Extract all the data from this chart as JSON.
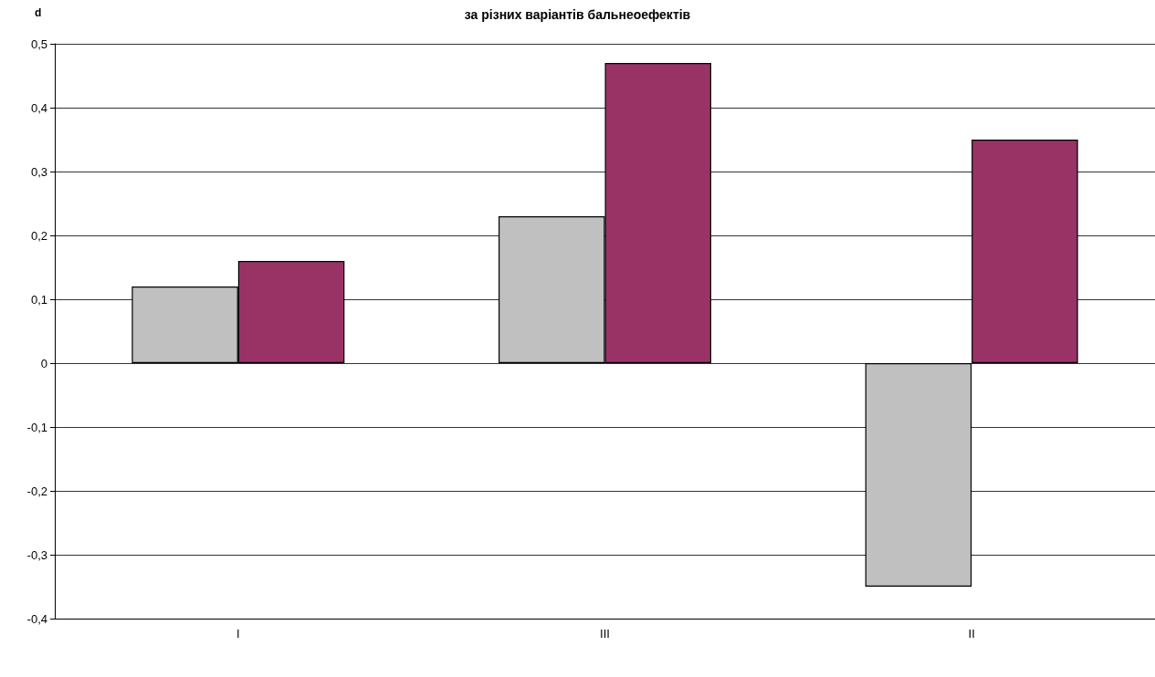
{
  "chart_data": {
    "type": "bar",
    "title": "за різних варіантів бальнеоефектів",
    "ylabel": "d",
    "categories": [
      "I",
      "III",
      "II"
    ],
    "series": [
      {
        "color": "#c0c0c0",
        "values": [
          0.12,
          0.23,
          -0.35
        ]
      },
      {
        "color": "#993366",
        "values": [
          0.16,
          0.47,
          0.35
        ]
      }
    ],
    "ylim": [
      -0.4,
      0.5
    ],
    "yticks": [
      {
        "value": -0.4,
        "label": "-0,4"
      },
      {
        "value": -0.3,
        "label": "-0,3"
      },
      {
        "value": -0.2,
        "label": "-0,2"
      },
      {
        "value": -0.1,
        "label": "-0,1"
      },
      0,
      {
        "value": 0.1,
        "label": "0,1"
      },
      {
        "value": 0.2,
        "label": "0,2"
      },
      {
        "value": 0.3,
        "label": "0,3"
      },
      {
        "value": 0.4,
        "label": "0,4"
      },
      {
        "value": 0.5,
        "label": "0,5"
      }
    ],
    "grid": "y"
  }
}
